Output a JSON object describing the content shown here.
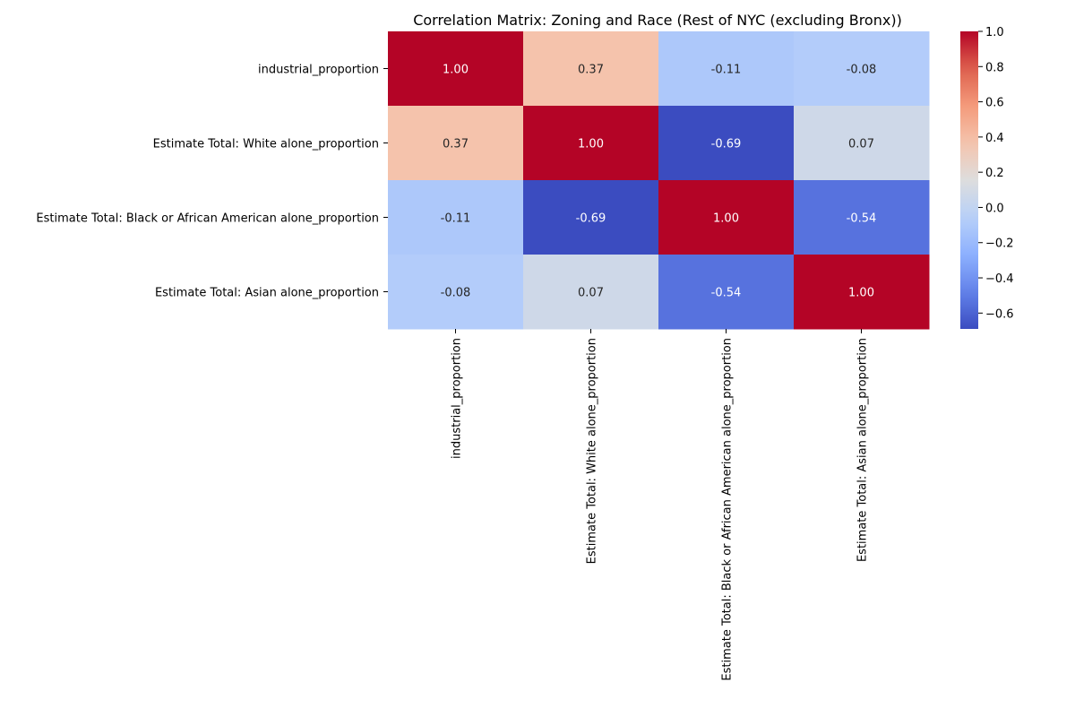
{
  "chart_data": {
    "type": "heatmap",
    "title": "Correlation Matrix: Zoning and Race (Rest of NYC (excluding Bronx))",
    "row_labels": [
      "industrial_proportion",
      "Estimate Total: White alone_proportion",
      "Estimate Total: Black or African American alone_proportion",
      "Estimate Total: Asian alone_proportion"
    ],
    "col_labels": [
      "industrial_proportion",
      "Estimate Total: White alone_proportion",
      "Estimate Total: Black or African American alone_proportion",
      "Estimate Total: Asian alone_proportion"
    ],
    "values": [
      [
        1.0,
        0.37,
        -0.11,
        -0.08
      ],
      [
        0.37,
        1.0,
        -0.69,
        0.07
      ],
      [
        -0.11,
        -0.69,
        1.0,
        -0.54
      ],
      [
        -0.08,
        0.07,
        -0.54,
        1.0
      ]
    ],
    "value_labels": [
      [
        "1.00",
        "0.37",
        "-0.11",
        "-0.08"
      ],
      [
        "0.37",
        "1.00",
        "-0.69",
        "0.07"
      ],
      [
        "-0.11",
        "-0.69",
        "1.00",
        "-0.54"
      ],
      [
        "-0.08",
        "0.07",
        "-0.54",
        "1.00"
      ]
    ],
    "colormap": "coolwarm",
    "colorbar": {
      "range": [
        -0.69,
        1.0
      ],
      "ticks": [
        -0.6,
        -0.4,
        -0.2,
        0.0,
        0.2,
        0.4,
        0.6,
        0.8,
        1.0
      ],
      "tick_labels": [
        "−0.6",
        "−0.4",
        "−0.2",
        "0.0",
        "0.2",
        "0.4",
        "0.6",
        "0.8",
        "1.0"
      ]
    }
  }
}
